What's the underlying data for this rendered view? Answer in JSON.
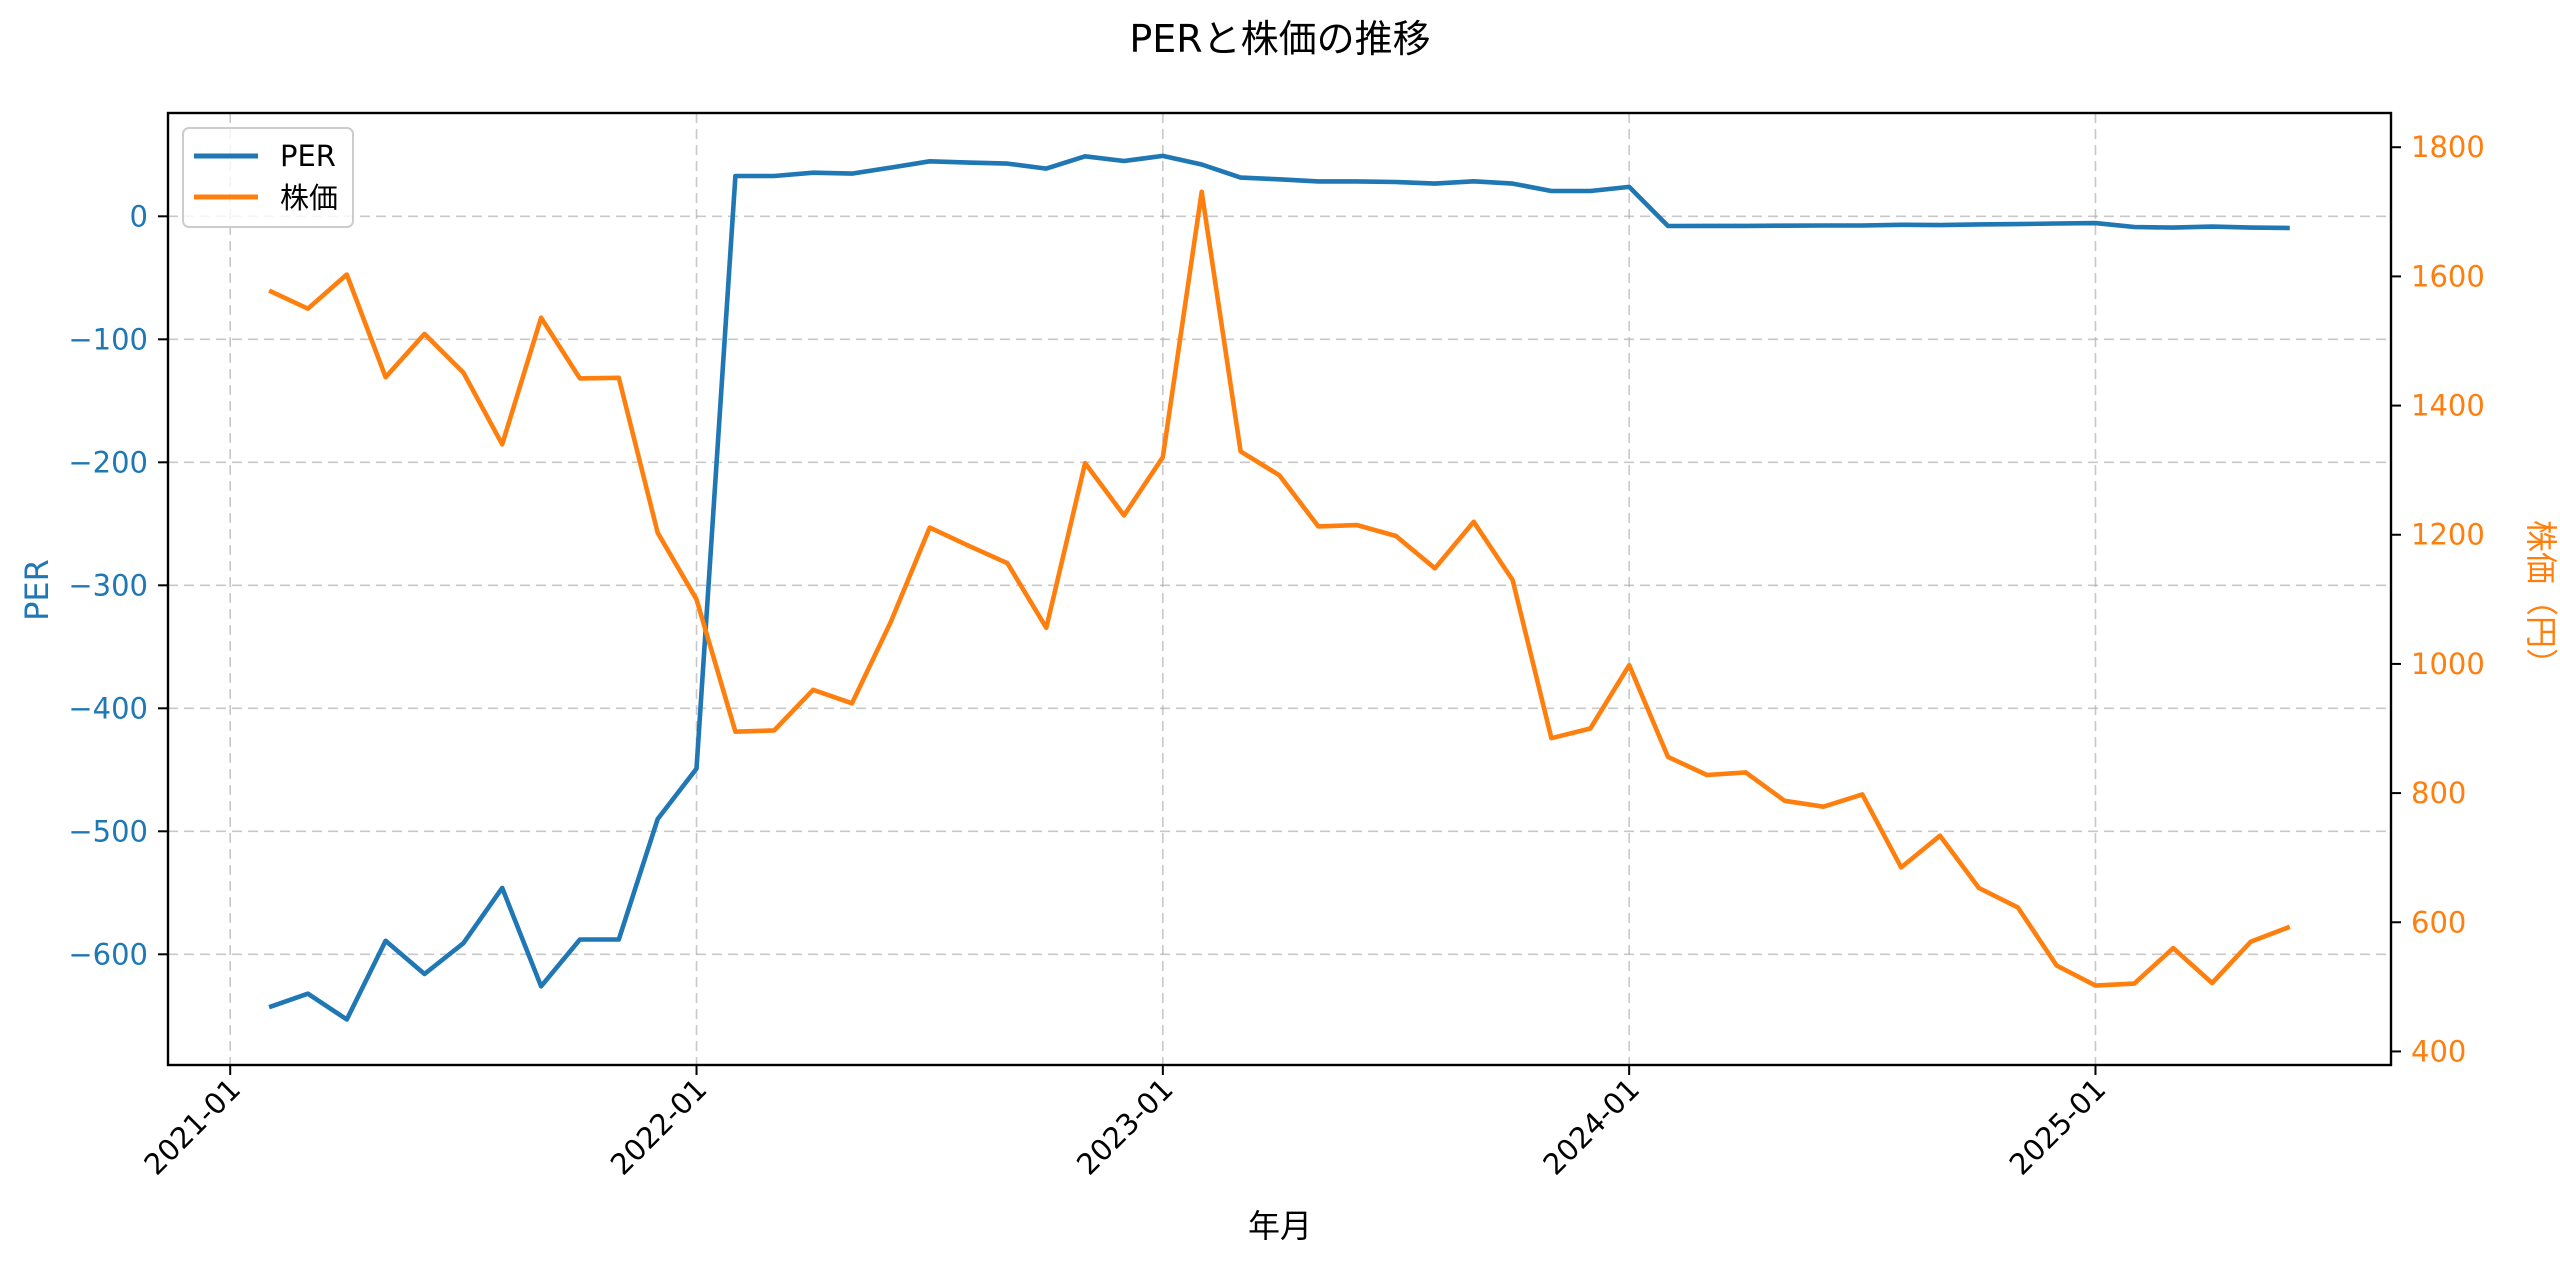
{
  "chart_data": {
    "type": "line",
    "title": "PERと株価の推移",
    "xlabel": "年月",
    "ylabel": "PER",
    "ylabel_right": "株価（円）",
    "grid": true,
    "legend_position": "upper left",
    "x_tick_labels": [
      "2021-01",
      "2022-01",
      "2023-01",
      "2024-01",
      "2025-01"
    ],
    "y_ticks_left": [
      0,
      -100,
      -200,
      -300,
      -400,
      -500,
      -600
    ],
    "y_ticks_left_labels": [
      "0",
      "−100",
      "−200",
      "−300",
      "−400",
      "−500",
      "−600"
    ],
    "y_ticks_right": [
      1800,
      1600,
      1400,
      1200,
      1000,
      800,
      600,
      400
    ],
    "ylim_left": [
      -690,
      84
    ],
    "ylim_right": [
      379,
      1853
    ],
    "x": [
      "2021-02",
      "2021-03",
      "2021-04",
      "2021-05",
      "2021-06",
      "2021-07",
      "2021-08",
      "2021-09",
      "2021-10",
      "2021-11",
      "2021-12",
      "2022-01",
      "2022-02",
      "2022-03",
      "2022-04",
      "2022-05",
      "2022-06",
      "2022-07",
      "2022-08",
      "2022-09",
      "2022-10",
      "2022-11",
      "2022-12",
      "2023-01",
      "2023-02",
      "2023-03",
      "2023-04",
      "2023-05",
      "2023-06",
      "2023-07",
      "2023-08",
      "2023-09",
      "2023-10",
      "2023-11",
      "2023-12",
      "2024-01",
      "2024-02",
      "2024-03",
      "2024-04",
      "2024-05",
      "2024-06",
      "2024-07",
      "2024-08",
      "2024-09",
      "2024-10",
      "2024-11",
      "2024-12",
      "2025-01",
      "2025-02",
      "2025-03",
      "2025-04",
      "2025-05",
      "2025-06"
    ],
    "series": [
      {
        "name": "PER",
        "axis": "left",
        "color": "#1f77b4",
        "values": [
          -643,
          -632,
          -653,
          -589,
          -616,
          -591,
          -546,
          -626,
          -588,
          -588,
          -490,
          -449,
          32.8,
          32.8,
          35.5,
          34.7,
          39.6,
          44.7,
          43.7,
          42.9,
          38.8,
          48.8,
          45.0,
          49.1,
          42.1,
          31.5,
          30.1,
          28.4,
          28.4,
          27.9,
          26.6,
          28.5,
          26.6,
          20.6,
          20.6,
          23.9,
          -7.9,
          -7.8,
          -7.8,
          -7.6,
          -7.5,
          -7.5,
          -6.9,
          -7.1,
          -6.6,
          -6.3,
          -5.8,
          -5.5,
          -8.7,
          -9.2,
          -8.4,
          -9.2,
          -9.5
        ]
      },
      {
        "name": "株価",
        "axis": "right",
        "color": "#ff7f0e",
        "values": [
          1578,
          1550,
          1603,
          1444,
          1511,
          1451,
          1340,
          1536,
          1442,
          1443,
          1203,
          1100,
          895,
          897,
          960,
          939,
          1065,
          1211,
          1183,
          1156,
          1056,
          1311,
          1230,
          1320,
          1731,
          1329,
          1292,
          1213,
          1215,
          1198,
          1148,
          1220,
          1130,
          885,
          900,
          998,
          856,
          828,
          832,
          788,
          779,
          798,
          685,
          734,
          653,
          623,
          533,
          502,
          505,
          560,
          506,
          570,
          593
        ]
      }
    ]
  },
  "legend": {
    "items": [
      {
        "label": "PER",
        "color": "#1f77b4"
      },
      {
        "label": "株価",
        "color": "#ff7f0e"
      }
    ]
  }
}
